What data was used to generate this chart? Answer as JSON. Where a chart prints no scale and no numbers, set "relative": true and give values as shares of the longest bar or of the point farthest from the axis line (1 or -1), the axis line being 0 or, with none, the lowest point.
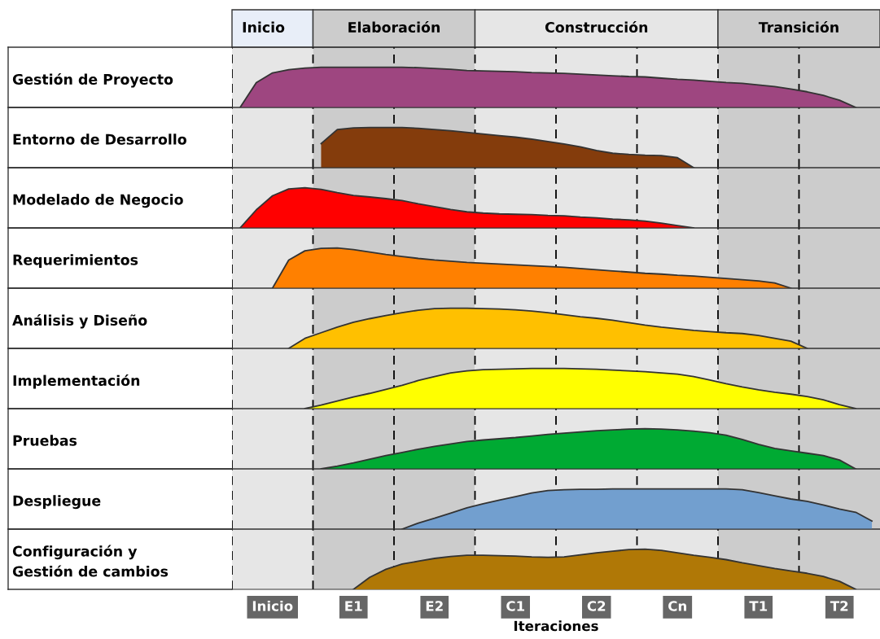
{
  "chart_data": [
    {
      "type": "area",
      "relative": true,
      "ylabel": "Gestión de Proyecto",
      "color": "#9e4680",
      "tick_labels": false,
      "line_style": "solid",
      "annotations": [
        "Inicio",
        "Elaboración",
        "Construcción",
        "Transición"
      ],
      "categories": [
        null,
        null,
        null,
        null,
        null,
        null,
        null,
        null,
        null,
        null,
        null,
        null,
        null,
        null,
        null,
        null,
        null,
        null,
        null,
        null,
        null,
        null,
        null,
        null,
        null,
        null,
        null,
        null,
        null,
        null,
        null,
        null,
        null,
        null,
        null,
        null,
        null,
        null,
        null,
        null
      ],
      "values": [
        0,
        0.62,
        0.86,
        0.94,
        0.98,
        1,
        1,
        1,
        1,
        1,
        1,
        0.99,
        0.97,
        0.95,
        0.92,
        0.91,
        0.9,
        0.89,
        0.87,
        0.86,
        0.85,
        0.83,
        0.81,
        0.79,
        0.77,
        0.76,
        0.73,
        0.7,
        0.68,
        0.65,
        0.62,
        0.6,
        0.56,
        0.52,
        0.46,
        0.39,
        0.3,
        0.18,
        0,
        null
      ]
    },
    {
      "type": "area",
      "relative": true,
      "ylabel": "Entorno de Desarrollo",
      "color": "#843c0c",
      "tick_labels": false,
      "categories": [
        null,
        null,
        null,
        null,
        null,
        null,
        null,
        null,
        null,
        null,
        null,
        null,
        null,
        null,
        null,
        null,
        null,
        null,
        null,
        null,
        null,
        null,
        null,
        null,
        null,
        null,
        null,
        null,
        null,
        null,
        null,
        null,
        null,
        null,
        null,
        null,
        null,
        null,
        null,
        null
      ],
      "values": [
        null,
        null,
        null,
        null,
        null,
        0.6,
        0.95,
        0.99,
        1,
        1,
        1,
        0.98,
        0.95,
        0.92,
        0.88,
        0.84,
        0.8,
        0.76,
        0.71,
        0.65,
        0.59,
        0.52,
        0.43,
        0.36,
        0.33,
        0.31,
        0.3,
        0.25,
        0,
        null,
        null,
        null,
        null,
        null,
        null,
        null,
        null,
        null,
        null,
        null
      ]
    },
    {
      "type": "area",
      "relative": true,
      "ylabel": "Modelado de Negocio",
      "color": "#ff0000",
      "tick_labels": false,
      "categories": [
        null,
        null,
        null,
        null,
        null,
        null,
        null,
        null,
        null,
        null,
        null,
        null,
        null,
        null,
        null,
        null,
        null,
        null,
        null,
        null,
        null,
        null,
        null,
        null,
        null,
        null,
        null,
        null,
        null,
        null,
        null,
        null,
        null,
        null,
        null,
        null,
        null,
        null,
        null,
        null
      ],
      "values": [
        0,
        0.45,
        0.8,
        0.97,
        1,
        0.96,
        0.88,
        0.81,
        0.77,
        0.73,
        0.68,
        0.6,
        0.53,
        0.46,
        0.4,
        0.37,
        0.35,
        0.34,
        0.33,
        0.31,
        0.3,
        0.27,
        0.25,
        0.22,
        0.2,
        0.17,
        0.12,
        0.06,
        0,
        null,
        null,
        null,
        null,
        null,
        null,
        null,
        null,
        null,
        null,
        null
      ]
    },
    {
      "type": "area",
      "relative": true,
      "ylabel": "Requerimientos",
      "color": "#ff8000",
      "tick_labels": false,
      "categories": [
        null,
        null,
        null,
        null,
        null,
        null,
        null,
        null,
        null,
        null,
        null,
        null,
        null,
        null,
        null,
        null,
        null,
        null,
        null,
        null,
        null,
        null,
        null,
        null,
        null,
        null,
        null,
        null,
        null,
        null,
        null,
        null,
        null,
        null,
        null,
        null,
        null,
        null,
        null,
        null
      ],
      "values": [
        null,
        null,
        0,
        0.7,
        0.93,
        0.99,
        1,
        0.96,
        0.9,
        0.84,
        0.79,
        0.74,
        0.7,
        0.67,
        0.64,
        0.62,
        0.6,
        0.58,
        0.56,
        0.54,
        0.52,
        0.49,
        0.46,
        0.43,
        0.4,
        0.37,
        0.35,
        0.32,
        0.3,
        0.27,
        0.24,
        0.21,
        0.18,
        0.13,
        0,
        null,
        null,
        null,
        null,
        null
      ]
    },
    {
      "type": "area",
      "relative": true,
      "ylabel": "Análisis y Diseño",
      "color": "#ffc000",
      "tick_labels": false,
      "categories": [
        null,
        null,
        null,
        null,
        null,
        null,
        null,
        null,
        null,
        null,
        null,
        null,
        null,
        null,
        null,
        null,
        null,
        null,
        null,
        null,
        null,
        null,
        null,
        null,
        null,
        null,
        null,
        null,
        null,
        null,
        null,
        null,
        null,
        null,
        null,
        null,
        null,
        null,
        null,
        null
      ],
      "values": [
        null,
        null,
        null,
        0,
        0.25,
        0.39,
        0.53,
        0.65,
        0.74,
        0.82,
        0.89,
        0.95,
        0.99,
        1,
        1,
        0.99,
        0.98,
        0.96,
        0.93,
        0.89,
        0.84,
        0.79,
        0.75,
        0.7,
        0.64,
        0.58,
        0.53,
        0.49,
        0.45,
        0.42,
        0.39,
        0.37,
        0.32,
        0.25,
        0.18,
        0,
        null,
        null,
        null,
        null
      ]
    },
    {
      "type": "area",
      "relative": true,
      "ylabel": "Implementación",
      "color": "#ffff00",
      "tick_labels": false,
      "categories": [
        null,
        null,
        null,
        null,
        null,
        null,
        null,
        null,
        null,
        null,
        null,
        null,
        null,
        null,
        null,
        null,
        null,
        null,
        null,
        null,
        null,
        null,
        null,
        null,
        null,
        null,
        null,
        null,
        null,
        null,
        null,
        null,
        null,
        null,
        null,
        null,
        null,
        null,
        null,
        null
      ],
      "values": [
        null,
        null,
        null,
        null,
        0,
        0.09,
        0.19,
        0.29,
        0.38,
        0.48,
        0.58,
        0.7,
        0.8,
        0.89,
        0.94,
        0.97,
        0.98,
        0.99,
        1,
        1,
        1,
        0.99,
        0.98,
        0.96,
        0.94,
        0.92,
        0.89,
        0.86,
        0.8,
        0.71,
        0.62,
        0.54,
        0.47,
        0.41,
        0.36,
        0.3,
        0.22,
        0.1,
        0,
        null
      ]
    },
    {
      "type": "area",
      "relative": true,
      "ylabel": "Pruebas",
      "color": "#00aa33",
      "tick_labels": false,
      "categories": [
        null,
        null,
        null,
        null,
        null,
        null,
        null,
        null,
        null,
        null,
        null,
        null,
        null,
        null,
        null,
        null,
        null,
        null,
        null,
        null,
        null,
        null,
        null,
        null,
        null,
        null,
        null,
        null,
        null,
        null,
        null,
        null,
        null,
        null,
        null,
        null,
        null,
        null,
        null,
        null
      ],
      "values": [
        null,
        null,
        null,
        null,
        null,
        0,
        0.07,
        0.15,
        0.24,
        0.33,
        0.41,
        0.49,
        0.56,
        0.62,
        0.68,
        0.72,
        0.75,
        0.78,
        0.82,
        0.86,
        0.89,
        0.92,
        0.95,
        0.97,
        0.99,
        1,
        0.99,
        0.97,
        0.94,
        0.9,
        0.84,
        0.73,
        0.61,
        0.51,
        0.45,
        0.39,
        0.33,
        0.22,
        0,
        null
      ]
    },
    {
      "type": "area",
      "relative": true,
      "ylabel": "Despliegue",
      "color": "#729fcf",
      "tick_labels": false,
      "categories": [
        null,
        null,
        null,
        null,
        null,
        null,
        null,
        null,
        null,
        null,
        null,
        null,
        null,
        null,
        null,
        null,
        null,
        null,
        null,
        null,
        null,
        null,
        null,
        null,
        null,
        null,
        null,
        null,
        null,
        null,
        null,
        null,
        null,
        null,
        null,
        null,
        null,
        null,
        null,
        null
      ],
      "values": [
        null,
        null,
        null,
        null,
        null,
        null,
        null,
        null,
        null,
        null,
        0,
        0.15,
        0.27,
        0.4,
        0.53,
        0.63,
        0.72,
        0.81,
        0.9,
        0.96,
        0.98,
        0.99,
        0.99,
        1,
        1,
        1,
        1,
        1,
        1,
        1,
        1,
        0.98,
        0.91,
        0.83,
        0.75,
        0.69,
        0.6,
        0.5,
        0.42,
        0.2
      ]
    },
    {
      "type": "area",
      "relative": true,
      "ylabel": "Configuración y\nGestión de cambios",
      "color": "#b07806",
      "tick_labels": "x",
      "xlabel": "Iteraciones",
      "categories": [
        null,
        null,
        "Inicio",
        null,
        null,
        null,
        null,
        "E1",
        null,
        null,
        null,
        null,
        "E2",
        null,
        null,
        null,
        null,
        "C1",
        null,
        null,
        null,
        null,
        "C2",
        null,
        null,
        null,
        null,
        "Cn",
        null,
        null,
        null,
        null,
        "T1",
        null,
        null,
        null,
        null,
        "T2",
        null,
        null
      ],
      "values": [
        null,
        null,
        null,
        null,
        null,
        null,
        null,
        0,
        0.3,
        0.5,
        0.63,
        0.7,
        0.77,
        0.82,
        0.85,
        0.85,
        0.84,
        0.83,
        0.81,
        0.8,
        0.81,
        0.86,
        0.91,
        0.95,
        0.99,
        1,
        0.97,
        0.91,
        0.85,
        0.8,
        0.74,
        0.66,
        0.59,
        0.52,
        0.46,
        0.4,
        0.32,
        0.2,
        0,
        null
      ]
    }
  ]
}
